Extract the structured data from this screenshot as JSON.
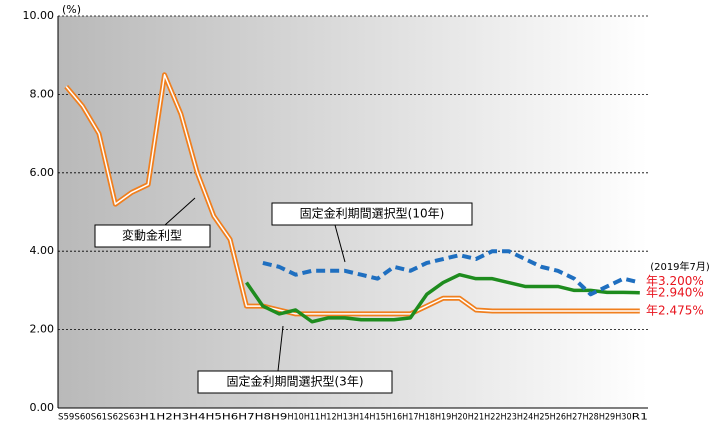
{
  "chart_data": {
    "type": "line",
    "y_label": "(%)",
    "note": "(2019年7月)",
    "categories": [
      "S59",
      "S60",
      "S61",
      "S62",
      "S63",
      "H1",
      "H2",
      "H3",
      "H4",
      "H5",
      "H6",
      "H7",
      "H8",
      "H9",
      "H10",
      "H11",
      "H12",
      "H13",
      "H14",
      "H15",
      "H16",
      "H17",
      "H18",
      "H19",
      "H20",
      "H21",
      "H22",
      "H23",
      "H24",
      "H25",
      "H26",
      "H27",
      "H28",
      "H29",
      "H30",
      "R1"
    ],
    "series": [
      {
        "name": "変動金利型",
        "color": "#f07f1e",
        "style": "double",
        "values": [
          8.2,
          7.7,
          7.0,
          5.2,
          5.5,
          5.7,
          8.5,
          7.5,
          6.0,
          4.9,
          4.3,
          2.6,
          2.6,
          2.5,
          2.4,
          2.4,
          2.4,
          2.4,
          2.4,
          2.4,
          2.4,
          2.4,
          2.6,
          2.8,
          2.8,
          2.5,
          2.475,
          2.475,
          2.475,
          2.475,
          2.475,
          2.475,
          2.475,
          2.475,
          2.475,
          2.475
        ],
        "value_labels": [
          null,
          null,
          null,
          null,
          null,
          null,
          null,
          null,
          null,
          null,
          null,
          null,
          null,
          null,
          null,
          null,
          null,
          null,
          null,
          null,
          null,
          null,
          null,
          null,
          null,
          null,
          null,
          null,
          null,
          null,
          null,
          null,
          null,
          null,
          null,
          "年2.475%"
        ]
      },
      {
        "name": "固定金利期間選択型(3年)",
        "color": "#1e8c1e",
        "style": "solid",
        "values": [
          null,
          null,
          null,
          null,
          null,
          null,
          null,
          null,
          null,
          null,
          null,
          3.2,
          2.6,
          2.4,
          2.5,
          2.2,
          2.3,
          2.3,
          2.25,
          2.25,
          2.25,
          2.3,
          2.9,
          3.2,
          3.4,
          3.3,
          3.3,
          3.2,
          3.1,
          3.1,
          3.1,
          3.0,
          3.0,
          2.95,
          2.95,
          2.94
        ],
        "value_labels": [
          null,
          null,
          null,
          null,
          null,
          null,
          null,
          null,
          null,
          null,
          null,
          null,
          null,
          null,
          null,
          null,
          null,
          null,
          null,
          null,
          null,
          null,
          null,
          null,
          null,
          null,
          null,
          null,
          null,
          null,
          null,
          null,
          null,
          null,
          null,
          "年2.940%"
        ]
      },
      {
        "name": "固定金利期間選択型(10年)",
        "color": "#1f6fc0",
        "style": "dashed",
        "values": [
          null,
          null,
          null,
          null,
          null,
          null,
          null,
          null,
          null,
          null,
          null,
          null,
          3.7,
          3.6,
          3.4,
          3.5,
          3.5,
          3.5,
          3.4,
          3.3,
          3.6,
          3.5,
          3.7,
          3.8,
          3.9,
          3.8,
          4.0,
          4.0,
          3.8,
          3.6,
          3.5,
          3.3,
          2.9,
          3.1,
          3.3,
          3.2
        ],
        "value_labels": [
          null,
          null,
          null,
          null,
          null,
          null,
          null,
          null,
          null,
          null,
          null,
          null,
          null,
          null,
          null,
          null,
          null,
          null,
          null,
          null,
          null,
          null,
          null,
          null,
          null,
          null,
          null,
          null,
          null,
          null,
          null,
          null,
          null,
          null,
          null,
          "年3.200%"
        ]
      }
    ],
    "ylim": [
      0,
      10
    ],
    "yticks": [
      {
        "value": 0,
        "label": "0.00"
      },
      {
        "value": 2,
        "label": "2.00"
      },
      {
        "value": 4,
        "label": "4.00"
      },
      {
        "value": 6,
        "label": "6.00"
      },
      {
        "value": 8,
        "label": "8.00"
      },
      {
        "value": 10,
        "label": "10.00"
      }
    ],
    "grid": true,
    "value_label_color": "#e8141e"
  }
}
